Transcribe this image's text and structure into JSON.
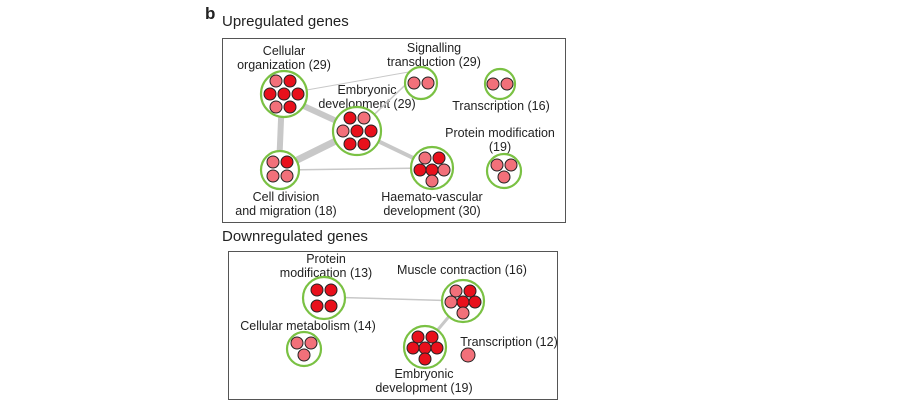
{
  "panel_label": "b",
  "up": {
    "title": "Upregulated genes",
    "labels": {
      "cellular_organization": "Cellular\norganization (29)",
      "signalling_transduction": "Signalling\ntransduction (29)",
      "embryonic_development": "Embryonic\ndevelopment (29)",
      "transcription": "Transcription (16)",
      "protein_modification": "Protein modification\n(19)",
      "cell_division_migration": "Cell division\nand migration (18)",
      "haemato_vascular": "Haemato-vascular\ndevelopment (30)"
    }
  },
  "down": {
    "title": "Downregulated genes",
    "labels": {
      "protein_modification": "Protein\nmodification (13)",
      "muscle_contraction": "Muscle contraction (16)",
      "cellular_metabolism": "Cellular metabolism (14)",
      "embryonic_development": "Embryonic\ndevelopment (19)",
      "transcription": "Transcription (12)"
    }
  }
}
